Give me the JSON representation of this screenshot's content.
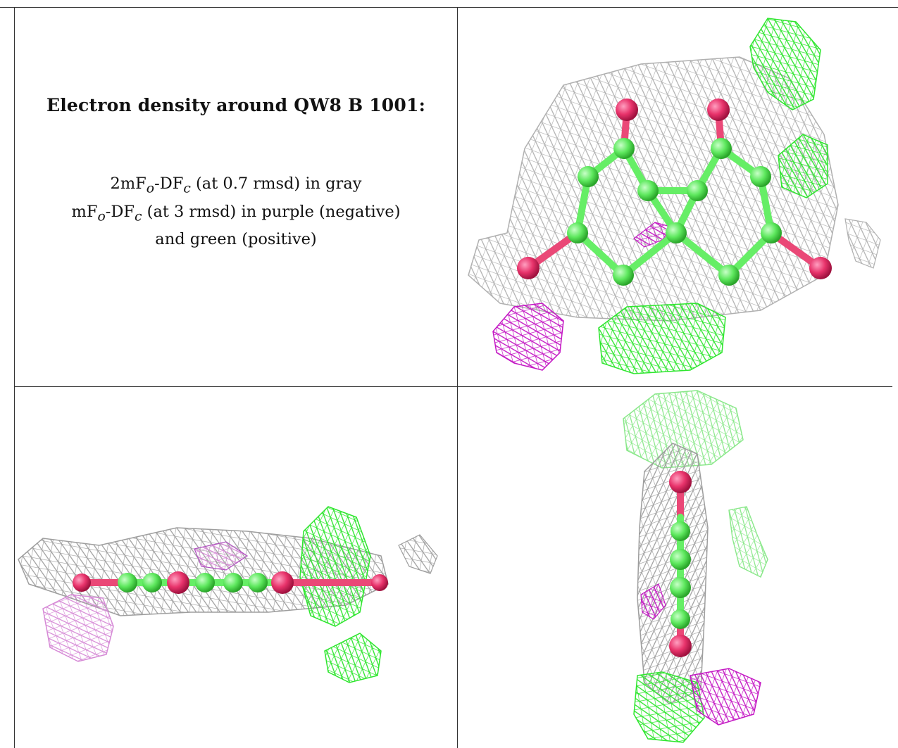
{
  "title": "Electron density around QW8 B 1001:",
  "legend_lines": [
    {
      "prefix": "2mF",
      "sub1": "o",
      "mid": "-DF",
      "sub2": "c",
      "suffix": " (at 0.7 rmsd) in gray"
    },
    {
      "prefix": "mF",
      "sub1": "o",
      "mid": "-DF",
      "sub2": "c",
      "suffix": " (at 3 rmsd) in purple (negative)"
    },
    {
      "text": "and green (positive)"
    }
  ],
  "colors": {
    "density_2fofc": "#b8b8b8",
    "density_positive": "#33ee33",
    "density_negative": "#cc22cc",
    "carbon_atom": "#66ee66",
    "oxygen_atom": "#e8336b"
  },
  "panels": [
    {
      "view": "top"
    },
    {
      "view": "side"
    },
    {
      "view": "end"
    }
  ]
}
